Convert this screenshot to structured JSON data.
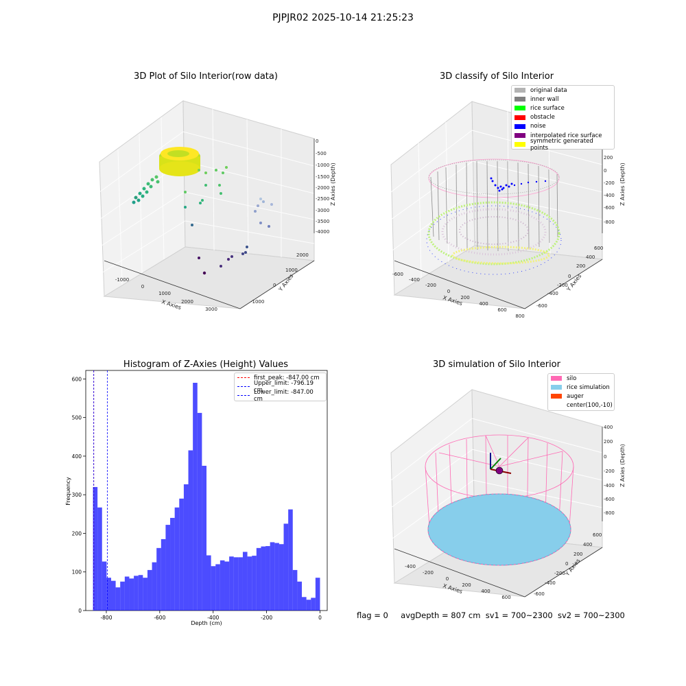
{
  "suptitle": "PJPJR02 2025-10-14 21:25:23",
  "footer": {
    "flag": "flag = 0",
    "avg": "avgDepth = 807 cm",
    "sv1": "sv1 = 700~2300",
    "sv2": "sv2 = 700~2300"
  },
  "chart_data": [
    {
      "type": "scatter",
      "title": "3D Plot of Silo Interior(row data)",
      "xlabel": "X Axies",
      "ylabel": "Y Axies",
      "zlabel": "Z Axies (Depth)",
      "xticks": [
        "-1000",
        "0",
        "1000",
        "2000",
        "3000"
      ],
      "yticks": [
        "-1000",
        "0",
        "1000",
        "2000"
      ],
      "zticks": [
        "0",
        "-500",
        "-1000",
        "-1500",
        "-2000",
        "-2500",
        "-3000",
        "-3500",
        "-4000"
      ],
      "colormap": "viridis"
    },
    {
      "type": "scatter",
      "title": "3D classify of Silo Interior",
      "xlabel": "X Axies",
      "ylabel": "Y Axies",
      "zlabel": "Z Axies (Depth)",
      "xticks": [
        "-600",
        "-400",
        "-200",
        "0",
        "200",
        "400",
        "600",
        "800"
      ],
      "yticks": [
        "-600",
        "-400",
        "-200",
        "0",
        "200",
        "400",
        "600"
      ],
      "zticks": [
        "200",
        "0",
        "-200",
        "-400",
        "-600",
        "-800"
      ],
      "legend": [
        {
          "label": "original data",
          "color": "#b3b3b3"
        },
        {
          "label": "inner wall",
          "color": "#808080"
        },
        {
          "label": "rice surface",
          "color": "#00ff00"
        },
        {
          "label": "obstacle",
          "color": "#ff0000"
        },
        {
          "label": "noise",
          "color": "#0000ff"
        },
        {
          "label": "interpolated rice surface",
          "color": "#800080"
        },
        {
          "label": "symmetric generated points",
          "color": "#ffff00"
        }
      ],
      "legend_position": "top-right"
    },
    {
      "type": "bar",
      "title": "Histogram of Z-Axies (Height) Values",
      "xlabel": "Depth (cm)",
      "ylabel": "Frequency",
      "xlim": [
        -877,
        27
      ],
      "ylim": [
        0,
        622
      ],
      "bin_start": -850,
      "bin_width": 17,
      "values": [
        320,
        267,
        127,
        85,
        77,
        60,
        75,
        88,
        83,
        90,
        92,
        85,
        105,
        125,
        162,
        185,
        222,
        240,
        267,
        290,
        327,
        415,
        590,
        512,
        375,
        143,
        115,
        120,
        130,
        127,
        140,
        138,
        138,
        152,
        140,
        142,
        162,
        166,
        167,
        177,
        175,
        172,
        225,
        262,
        105,
        75,
        35,
        28,
        33,
        85
      ],
      "xticks": [
        "-800",
        "-600",
        "-400",
        "-200",
        "0"
      ],
      "yticks": [
        "0",
        "100",
        "200",
        "300",
        "400",
        "500",
        "600"
      ],
      "color": "#0000ff",
      "vlines": [
        {
          "label": "first_peak: -847.00 cm",
          "x": -847,
          "color": "#ff0000"
        },
        {
          "label": "Upper_limit: -796.19 cm",
          "x": -796.19,
          "color": "#0000ff"
        },
        {
          "label": "Lower_limit: -847.00 cm",
          "x": -847,
          "color": "#0000ff"
        }
      ],
      "legend_position": "top-right"
    },
    {
      "type": "scatter",
      "title": "3D simulation of Silo Interior",
      "xlabel": "X Axies",
      "ylabel": "Y Axies",
      "zlabel": "Z Axies (Depth)",
      "xticks": [
        "-400",
        "-200",
        "0",
        "200",
        "400",
        "600"
      ],
      "yticks": [
        "-600",
        "-400",
        "-200",
        "0",
        "200",
        "400",
        "600"
      ],
      "zticks": [
        "400",
        "200",
        "0",
        "-200",
        "-400",
        "-600",
        "-800"
      ],
      "legend": [
        {
          "label": "silo",
          "color": "#ff69b4"
        },
        {
          "label": "rice simulation",
          "color": "#87ceeb"
        },
        {
          "label": "auger",
          "color": "#ff4500"
        },
        {
          "label": "center(100,-10)",
          "color": "#ffffff"
        }
      ],
      "legend_position": "top-right"
    }
  ]
}
